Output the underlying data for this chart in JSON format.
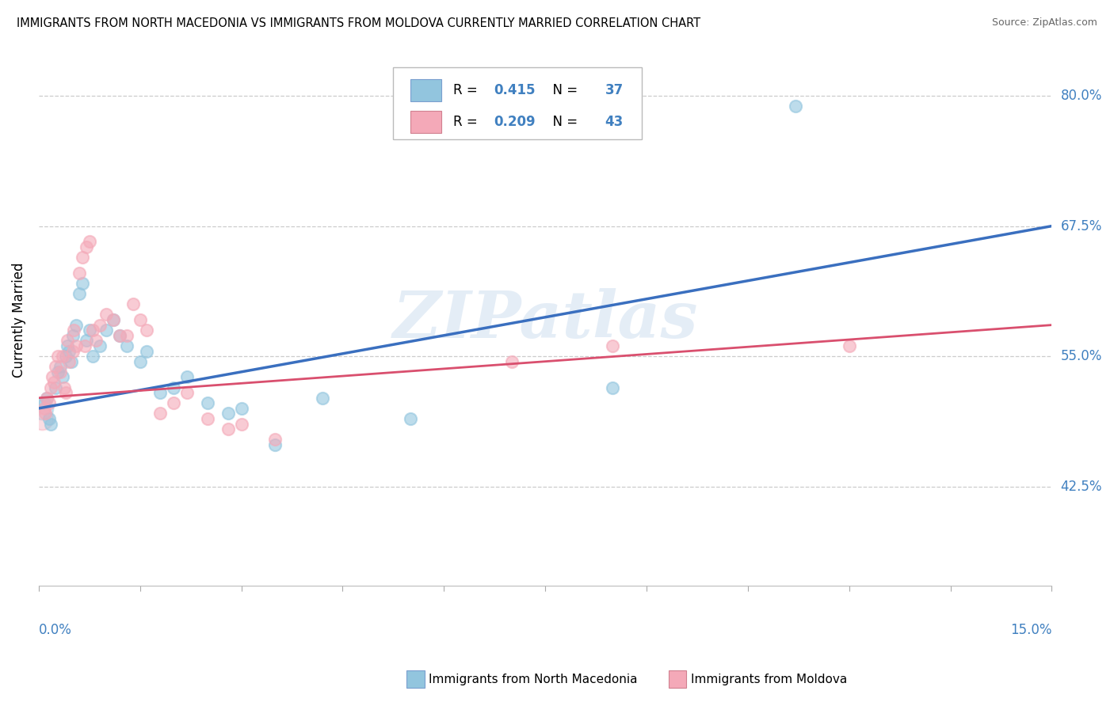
{
  "title": "IMMIGRANTS FROM NORTH MACEDONIA VS IMMIGRANTS FROM MOLDOVA CURRENTLY MARRIED CORRELATION CHART",
  "source": "Source: ZipAtlas.com",
  "ylabel": "Currently Married",
  "xlim": [
    0.0,
    15.0
  ],
  "ylim": [
    33.0,
    84.0
  ],
  "yticks": [
    42.5,
    55.0,
    67.5,
    80.0
  ],
  "xticks_count": 11,
  "blue_R": 0.415,
  "blue_N": 37,
  "pink_R": 0.209,
  "pink_N": 43,
  "blue_color": "#92c5de",
  "pink_color": "#f4a9b8",
  "blue_line_color": "#3a6fbf",
  "pink_line_color": "#d94f6e",
  "accent_color": "#4080c0",
  "watermark": "ZIPatlas",
  "legend_label_blue": "Immigrants from North Macedonia",
  "legend_label_pink": "Immigrants from Moldova",
  "blue_x": [
    0.08,
    0.12,
    0.15,
    0.18,
    0.25,
    0.28,
    0.32,
    0.35,
    0.4,
    0.42,
    0.45,
    0.48,
    0.5,
    0.55,
    0.6,
    0.65,
    0.7,
    0.75,
    0.8,
    0.9,
    1.0,
    1.1,
    1.2,
    1.3,
    1.5,
    1.6,
    1.8,
    2.0,
    2.2,
    2.5,
    2.8,
    3.0,
    3.5,
    4.2,
    5.5,
    8.5,
    11.2
  ],
  "blue_y": [
    50.5,
    51.0,
    49.0,
    48.5,
    52.0,
    53.5,
    54.0,
    53.0,
    55.0,
    56.0,
    55.5,
    54.5,
    57.0,
    58.0,
    61.0,
    62.0,
    56.5,
    57.5,
    55.0,
    56.0,
    57.5,
    58.5,
    57.0,
    56.0,
    54.5,
    55.5,
    51.5,
    52.0,
    53.0,
    50.5,
    49.5,
    50.0,
    46.5,
    51.0,
    49.0,
    52.0,
    79.0
  ],
  "pink_x": [
    0.08,
    0.1,
    0.12,
    0.15,
    0.18,
    0.2,
    0.25,
    0.28,
    0.32,
    0.38,
    0.4,
    0.45,
    0.5,
    0.55,
    0.6,
    0.65,
    0.7,
    0.75,
    0.8,
    0.85,
    0.9,
    1.0,
    1.1,
    1.2,
    1.4,
    1.6,
    1.8,
    2.0,
    2.2,
    2.5,
    3.0,
    3.5,
    1.3,
    1.5,
    2.8,
    7.0,
    8.5,
    12.0,
    0.22,
    0.35,
    0.42,
    0.52,
    0.68
  ],
  "pink_y": [
    50.0,
    49.5,
    51.0,
    50.5,
    52.0,
    53.0,
    54.0,
    55.0,
    53.5,
    52.0,
    51.5,
    54.5,
    55.5,
    56.0,
    63.0,
    64.5,
    65.5,
    66.0,
    57.5,
    56.5,
    58.0,
    59.0,
    58.5,
    57.0,
    60.0,
    57.5,
    49.5,
    50.5,
    51.5,
    49.0,
    48.5,
    47.0,
    57.0,
    58.5,
    48.0,
    54.5,
    56.0,
    56.0,
    52.5,
    55.0,
    56.5,
    57.5,
    56.0
  ]
}
